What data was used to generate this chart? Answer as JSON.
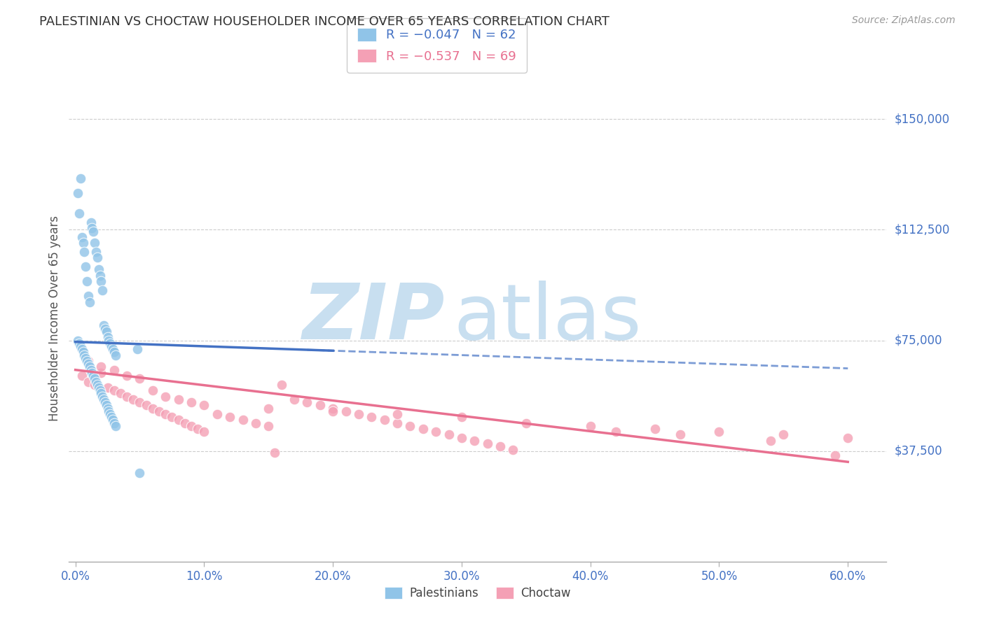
{
  "title": "PALESTINIAN VS CHOCTAW HOUSEHOLDER INCOME OVER 65 YEARS CORRELATION CHART",
  "source": "Source: ZipAtlas.com",
  "ylabel": "Householder Income Over 65 years",
  "xlabel_ticks": [
    "0.0%",
    "10.0%",
    "20.0%",
    "30.0%",
    "40.0%",
    "50.0%",
    "60.0%"
  ],
  "xlabel_vals": [
    0.0,
    0.1,
    0.2,
    0.3,
    0.4,
    0.5,
    0.6
  ],
  "ytick_labels": [
    "$37,500",
    "$75,000",
    "$112,500",
    "$150,000"
  ],
  "ytick_vals": [
    37500,
    75000,
    112500,
    150000
  ],
  "ylim": [
    0,
    165000
  ],
  "xlim": [
    -0.005,
    0.63
  ],
  "background_color": "#ffffff",
  "grid_color": "#cccccc",
  "title_color": "#333333",
  "axis_label_color": "#555555",
  "ytick_color": "#4472c4",
  "xtick_color": "#4472c4",
  "watermark_zip": "ZIP",
  "watermark_atlas": "atlas",
  "watermark_color_zip": "#c8dff0",
  "watermark_color_atlas": "#c8dff0",
  "blue_scatter_color": "#90c4e8",
  "pink_scatter_color": "#f4a0b5",
  "blue_line_color": "#4472c4",
  "pink_line_color": "#e87090",
  "blue_line_solid_end": 0.2,
  "blue_slope": -15000,
  "blue_intercept": 74500,
  "pink_slope": -52000,
  "pink_intercept": 65000,
  "palestinians_x": [
    0.002,
    0.003,
    0.004,
    0.005,
    0.006,
    0.007,
    0.008,
    0.009,
    0.01,
    0.011,
    0.012,
    0.013,
    0.014,
    0.015,
    0.016,
    0.017,
    0.018,
    0.019,
    0.02,
    0.021,
    0.022,
    0.023,
    0.024,
    0.025,
    0.026,
    0.027,
    0.028,
    0.029,
    0.03,
    0.031,
    0.002,
    0.003,
    0.004,
    0.005,
    0.006,
    0.007,
    0.008,
    0.009,
    0.01,
    0.011,
    0.012,
    0.013,
    0.014,
    0.015,
    0.016,
    0.017,
    0.018,
    0.019,
    0.02,
    0.021,
    0.022,
    0.023,
    0.024,
    0.025,
    0.026,
    0.027,
    0.028,
    0.029,
    0.03,
    0.031,
    0.05,
    0.048
  ],
  "palestinians_y": [
    125000,
    118000,
    130000,
    110000,
    108000,
    105000,
    100000,
    95000,
    90000,
    88000,
    115000,
    113000,
    112000,
    108000,
    105000,
    103000,
    99000,
    97000,
    95000,
    92000,
    80000,
    79000,
    78000,
    76000,
    75000,
    74000,
    73000,
    72000,
    71000,
    70000,
    75000,
    74000,
    73000,
    72000,
    71000,
    70000,
    69000,
    68000,
    67000,
    66000,
    65000,
    64000,
    63000,
    62000,
    61000,
    60000,
    59000,
    58000,
    57000,
    56000,
    55000,
    54000,
    53000,
    52000,
    51000,
    50000,
    49000,
    48000,
    47000,
    46000,
    30000,
    72000
  ],
  "choctaw_x": [
    0.005,
    0.01,
    0.015,
    0.02,
    0.025,
    0.03,
    0.035,
    0.04,
    0.045,
    0.05,
    0.055,
    0.06,
    0.065,
    0.07,
    0.075,
    0.08,
    0.085,
    0.09,
    0.095,
    0.1,
    0.11,
    0.12,
    0.13,
    0.14,
    0.15,
    0.16,
    0.17,
    0.18,
    0.19,
    0.2,
    0.21,
    0.22,
    0.23,
    0.24,
    0.25,
    0.26,
    0.27,
    0.28,
    0.29,
    0.3,
    0.01,
    0.02,
    0.03,
    0.04,
    0.05,
    0.06,
    0.07,
    0.08,
    0.09,
    0.1,
    0.15,
    0.2,
    0.25,
    0.3,
    0.35,
    0.4,
    0.45,
    0.5,
    0.55,
    0.6,
    0.31,
    0.32,
    0.33,
    0.34,
    0.155,
    0.42,
    0.47,
    0.54,
    0.59
  ],
  "choctaw_y": [
    63000,
    61000,
    60000,
    64000,
    59000,
    58000,
    57000,
    56000,
    55000,
    54000,
    53000,
    52000,
    51000,
    50000,
    49000,
    48000,
    47000,
    46000,
    45000,
    44000,
    50000,
    49000,
    48000,
    47000,
    46000,
    60000,
    55000,
    54000,
    53000,
    52000,
    51000,
    50000,
    49000,
    48000,
    47000,
    46000,
    45000,
    44000,
    43000,
    42000,
    68000,
    66000,
    65000,
    63000,
    62000,
    58000,
    56000,
    55000,
    54000,
    53000,
    52000,
    51000,
    50000,
    49000,
    47000,
    46000,
    45000,
    44000,
    43000,
    42000,
    41000,
    40000,
    39000,
    38000,
    37000,
    44000,
    43000,
    41000,
    36000
  ]
}
